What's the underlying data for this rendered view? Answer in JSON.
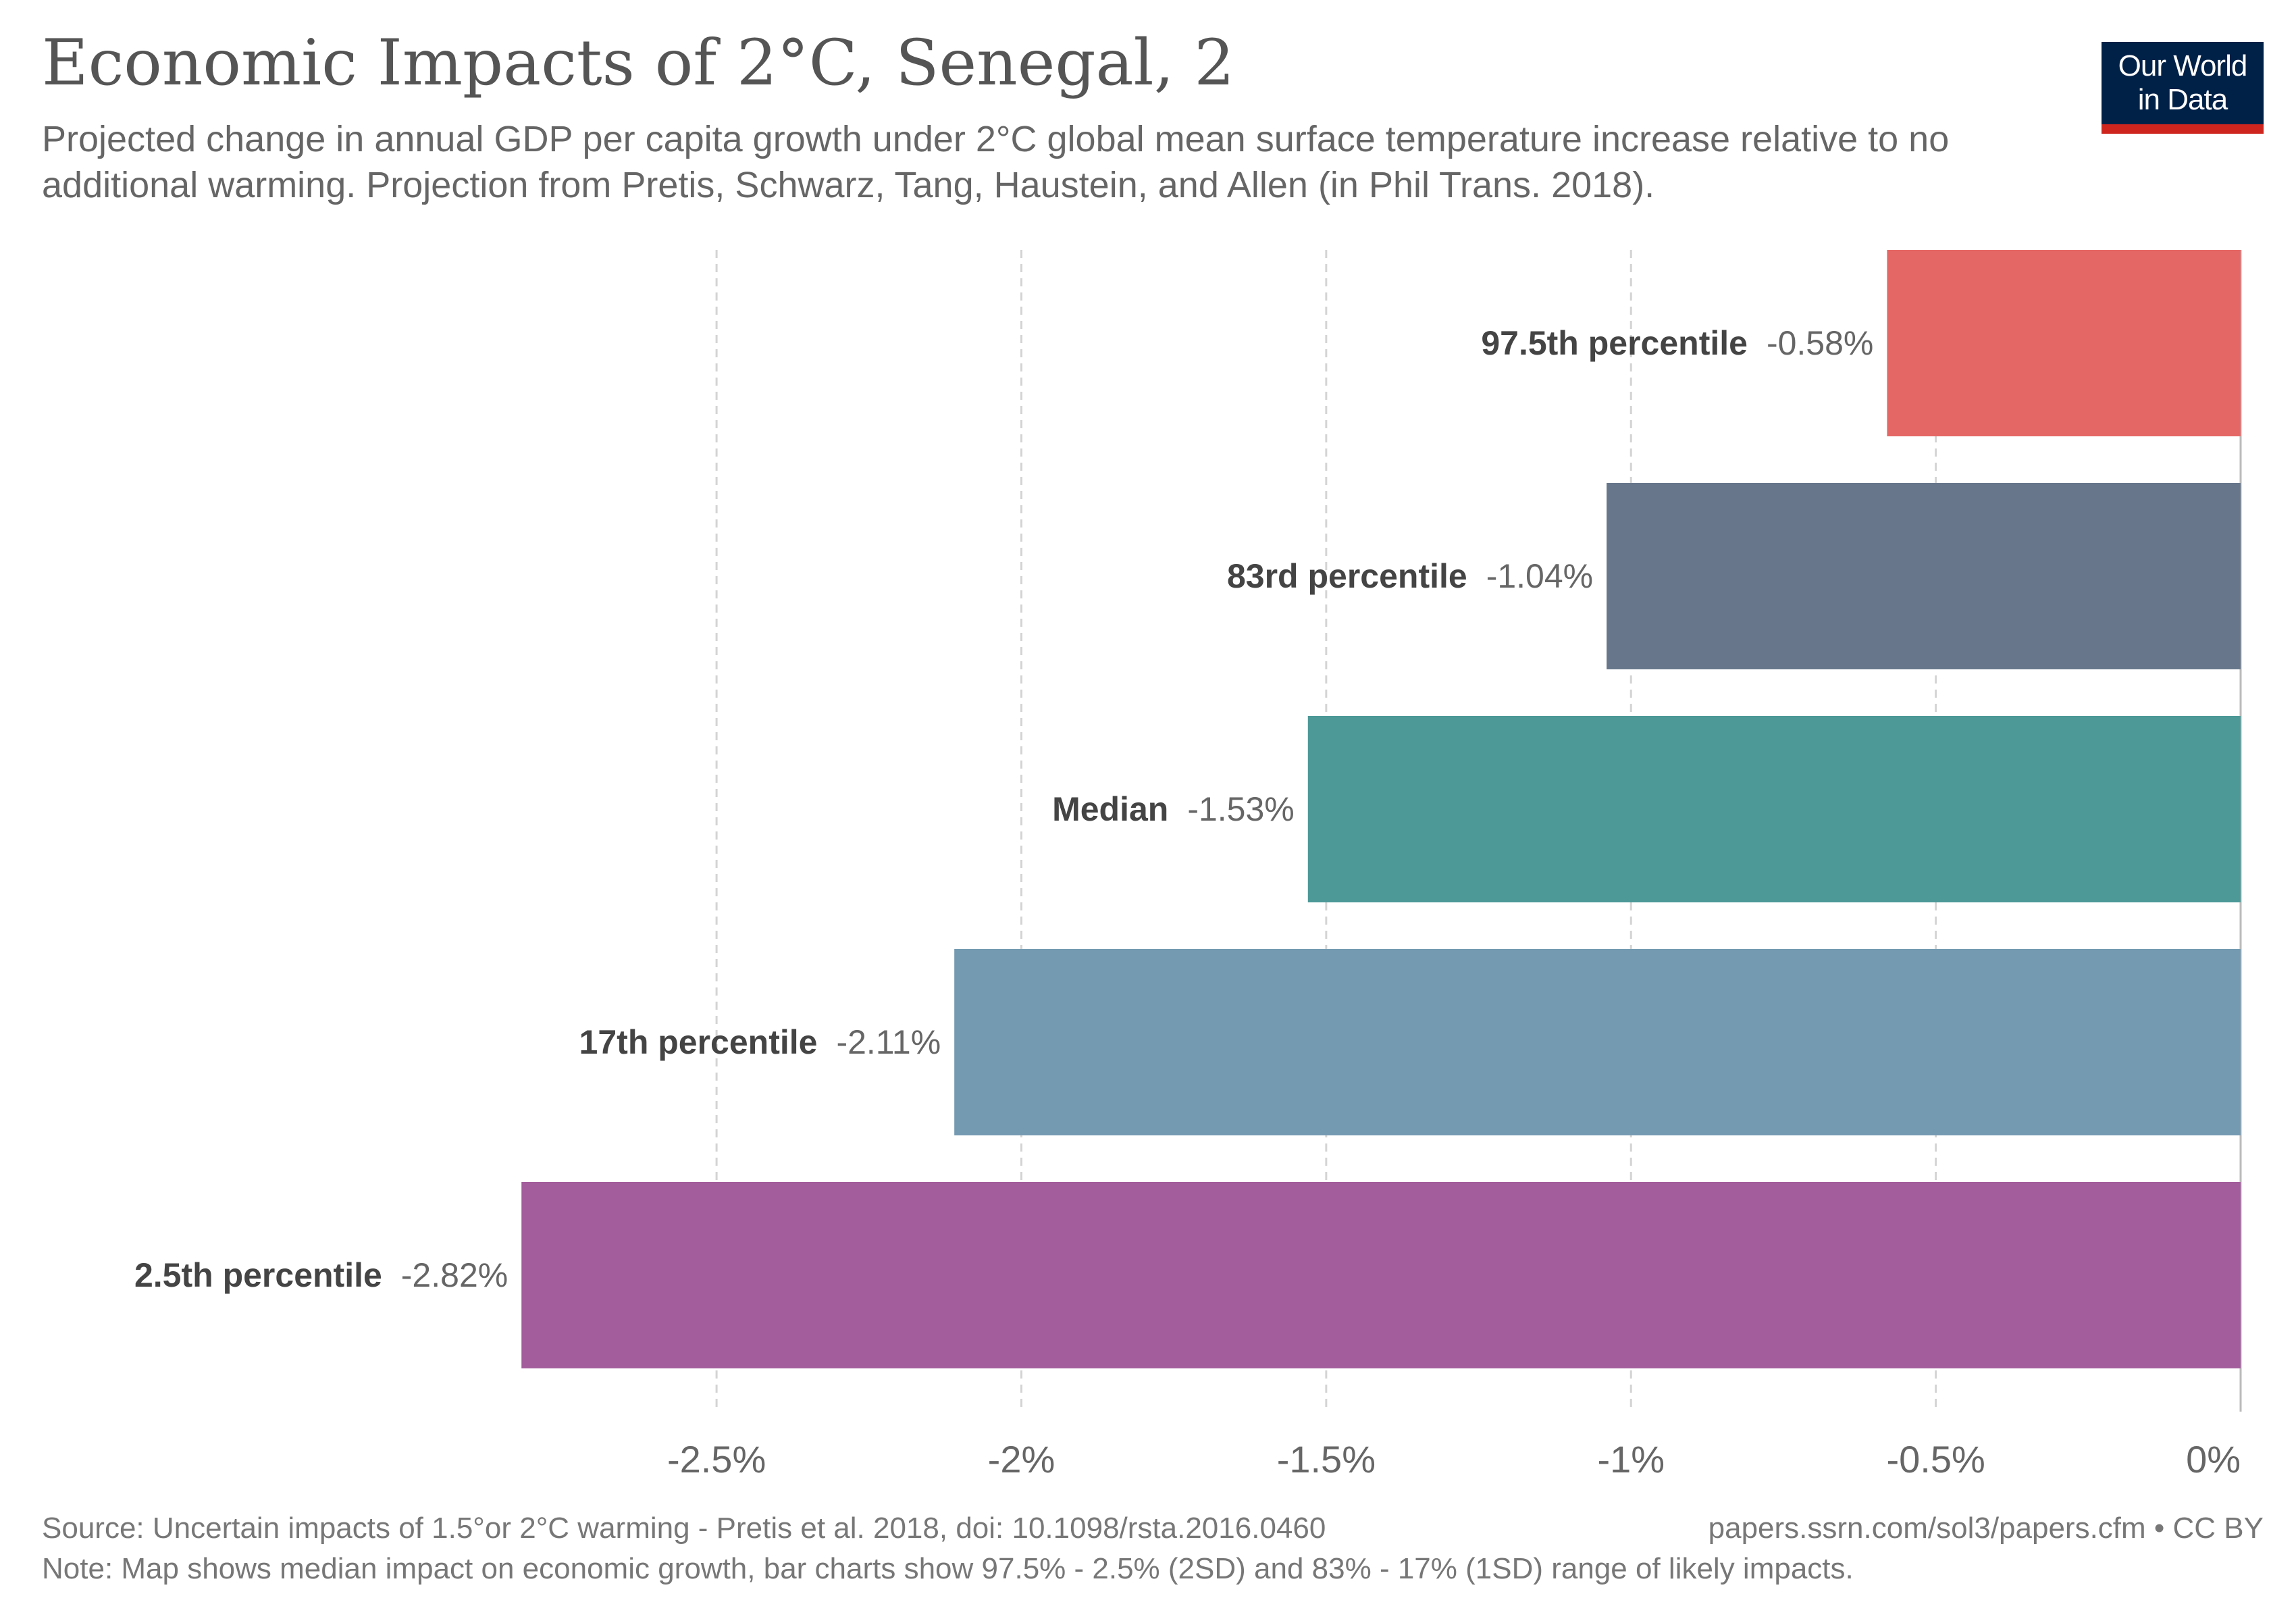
{
  "header": {
    "title": "Economic Impacts of 2°C, Senegal, 2",
    "subtitle": "Projected change in annual GDP per capita growth under 2°C global mean surface temperature increase relative to no additional warming. Projection from Pretis, Schwarz, Tang, Haustein, and Allen (in Phil Trans. 2018)."
  },
  "logo": {
    "line1": "Our World",
    "line2": "in Data",
    "bg_color": "#002147",
    "accent_color": "#ce261e"
  },
  "chart_data": {
    "type": "bar",
    "orientation": "horizontal",
    "categories": [
      "97.5th percentile",
      "83rd percentile",
      "Median",
      "17th percentile",
      "2.5th percentile"
    ],
    "values": [
      -0.58,
      -1.04,
      -1.53,
      -2.11,
      -2.82
    ],
    "value_labels": [
      "-0.58%",
      "-1.04%",
      "-1.53%",
      "-2.11%",
      "-2.82%"
    ],
    "colors": [
      "#e56765",
      "#67768b",
      "#4c9998",
      "#739ab1",
      "#a35d9c"
    ],
    "xlim": [
      -2.9,
      0
    ],
    "xticks": [
      -2.5,
      -2,
      -1.5,
      -1,
      -0.5,
      0
    ],
    "xtick_labels": [
      "-2.5%",
      "-2%",
      "-1.5%",
      "-1%",
      "-0.5%",
      "0%"
    ],
    "grid": true,
    "xlabel": "",
    "ylabel": ""
  },
  "footer": {
    "source": "Source: Uncertain impacts of 1.5°or 2°C warming - Pretis et al. 2018, doi: 10.1098/rsta.2016.0460",
    "url": "papers.ssrn.com/sol3/papers.cfm • CC BY",
    "note": "Note: Map shows median impact on economic growth, bar charts show 97.5% - 2.5% (2SD) and 83% - 17% (1SD) range of likely impacts."
  }
}
